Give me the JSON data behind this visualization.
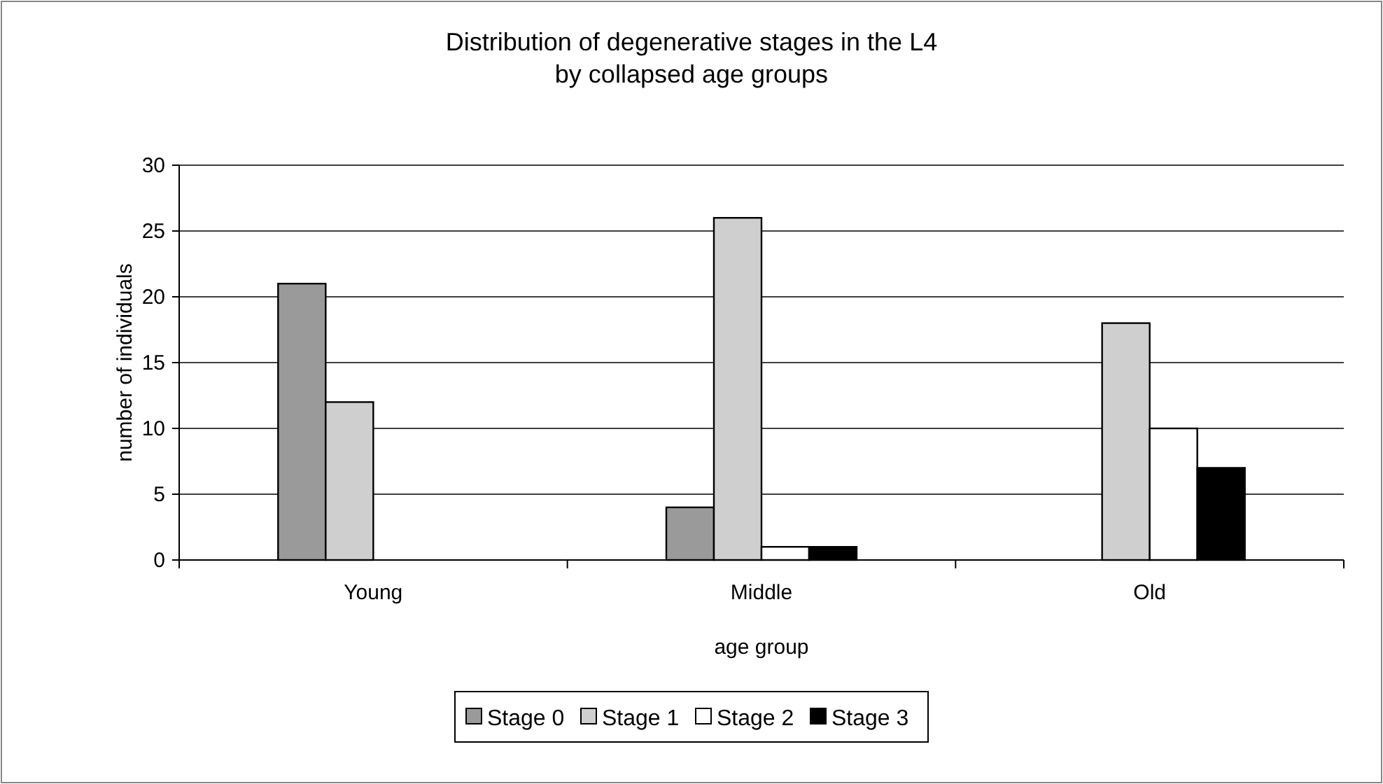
{
  "chart_data": {
    "type": "bar",
    "title": "Distribution of degenerative stages in the L4\nby collapsed age groups",
    "xlabel": "age group",
    "ylabel": "number of  individuals",
    "categories": [
      "Young",
      "Middle",
      "Old"
    ],
    "series": [
      {
        "name": "Stage 0",
        "color": "#9a9a9a",
        "values": [
          21,
          4,
          0
        ]
      },
      {
        "name": "Stage 1",
        "color": "#cfcfcf",
        "values": [
          12,
          26,
          18
        ]
      },
      {
        "name": "Stage 2",
        "color": "#ffffff",
        "values": [
          0,
          1,
          10
        ]
      },
      {
        "name": "Stage 3",
        "color": "#000000",
        "values": [
          0,
          1,
          7
        ]
      }
    ],
    "ylim": [
      0,
      30
    ],
    "yticks": [
      0,
      5,
      10,
      15,
      20,
      25,
      30
    ],
    "grid": "y",
    "legend": "bottom"
  }
}
